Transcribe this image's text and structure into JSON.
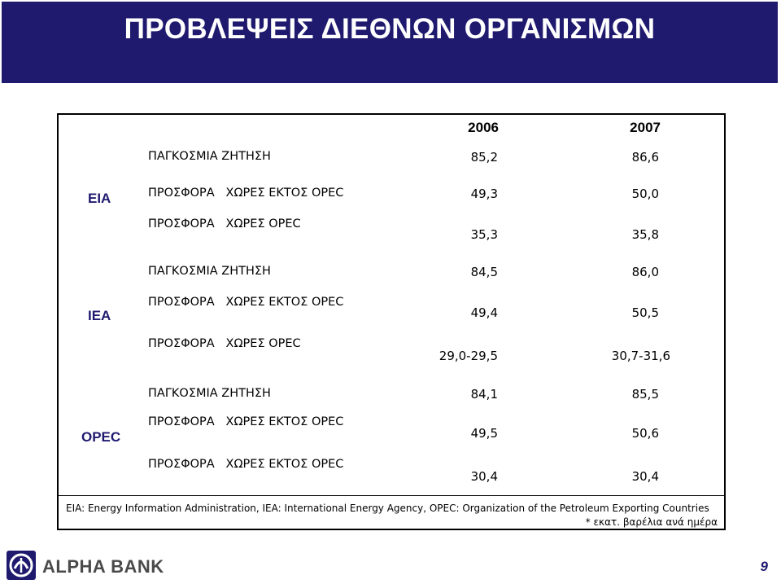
{
  "title": "ΠΡΟΒΛΕΨΕΙΣ ΔΙΕΘΝΩΝ ΟΡΓΑΝΙΣΜΩΝ",
  "years": [
    "2006",
    "2007"
  ],
  "groups": [
    {
      "agency": "EIA",
      "rows": [
        {
          "label": "ΠΑΓΚΟΣΜΙΑ ΖΗΤΗΣΗ",
          "v2006": "85,2",
          "v2007": "86,6"
        },
        {
          "label": "ΠΡΟΣΦΟΡΑ   ΧΩΡΕΣ ΕΚΤΟΣ OPEC",
          "v2006": "49,3",
          "v2007": "50,0"
        },
        {
          "label": "ΠΡΟΣΦΟΡΑ   ΧΩΡΕΣ OPEC",
          "v2006": "35,3",
          "v2007": "35,8"
        }
      ]
    },
    {
      "agency": "IEA",
      "rows": [
        {
          "label": "ΠΑΓΚΟΣΜΙΑ ΖΗΤΗΣΗ",
          "v2006": "84,5",
          "v2007": "86,0"
        },
        {
          "label": "ΠΡΟΣΦΟΡΑ   ΧΩΡΕΣ ΕΚΤΟΣ OPEC",
          "v2006": "49,4",
          "v2007": "50,5"
        },
        {
          "label": "ΠΡΟΣΦΟΡΑ   ΧΩΡΕΣ OPEC",
          "v2006": "29,0-29,5",
          "v2007": "30,7-31,6"
        }
      ]
    },
    {
      "agency": "OPEC",
      "rows": [
        {
          "label": "ΠΑΓΚΟΣΜΙΑ ΖΗΤΗΣΗ",
          "v2006": "84,1",
          "v2007": "85,5"
        },
        {
          "label": "ΠΡΟΣΦΟΡΑ   ΧΩΡΕΣ ΕΚΤΟΣ OPEC",
          "v2006": "49,5",
          "v2007": "50,6"
        },
        {
          "label": "ΠΡΟΣΦΟΡΑ   ΧΩΡΕΣ ΕΚΤΟΣ OPEC",
          "v2006": "30,4",
          "v2007": "30,4"
        }
      ]
    }
  ],
  "footnote": "EIA: Energy Information Administration, IEA: International Energy Agency, OPEC: Organization of the Petroleum Exporting Countries",
  "units_note": "* εκατ. βαρέλια ανά ημέρα",
  "brand": "ALPHA BANK",
  "page_number": "9",
  "colors": {
    "header_bg": "#1f1a6e",
    "agency_text": "#1f1a6e"
  }
}
